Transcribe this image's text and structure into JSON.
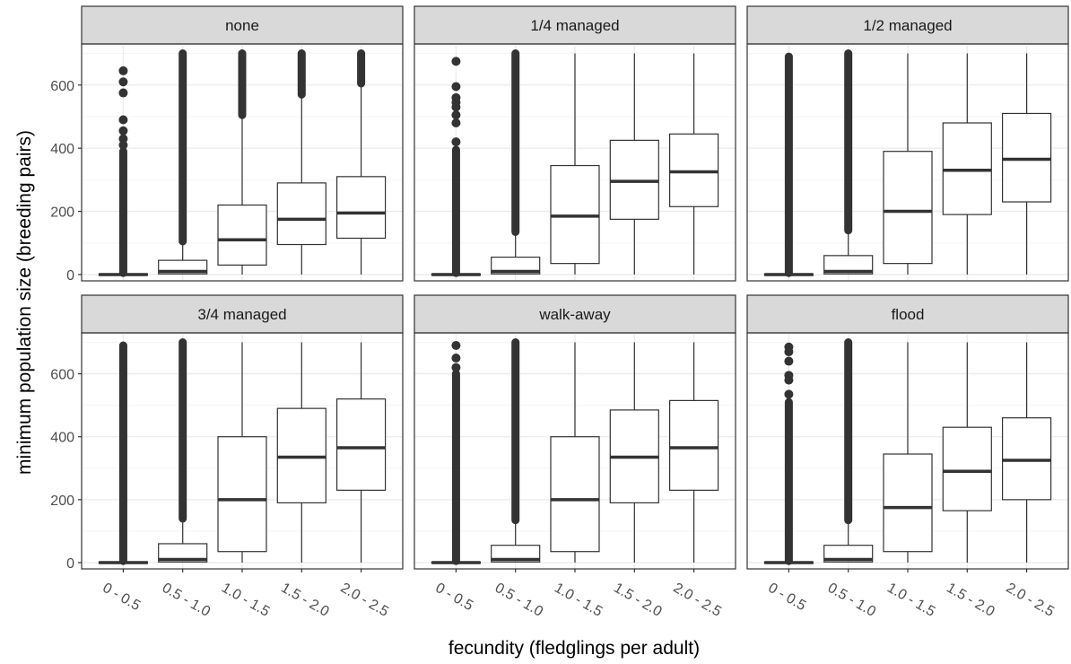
{
  "chart_data": {
    "type": "boxplot",
    "xlabel": "fecundity (fledglings per adult)",
    "ylabel": "minimum population size (breeding pairs)",
    "ylim": [
      -20,
      730
    ],
    "yticks": [
      0,
      200,
      400,
      600
    ],
    "categories": [
      "0 - 0.5",
      "0.5 - 1.0",
      "1.0 - 1.5",
      "1.5 - 2.0",
      "2.0 - 2.5"
    ],
    "grid": true,
    "panel_layout": "2 rows x 3 columns, shared axes",
    "panels": [
      {
        "title": "none",
        "boxes": [
          {
            "min": 0,
            "q1": 0,
            "median": 0,
            "q3": 2,
            "max": 3,
            "outliers": {
              "dense_from": 5,
              "dense_to": 390,
              "dots": [
                410,
                430,
                455,
                490,
                575,
                610,
                645
              ]
            }
          },
          {
            "min": 0,
            "q1": 2,
            "median": 10,
            "q3": 45,
            "max": 100,
            "outliers": {
              "dense_from": 105,
              "dense_to": 700,
              "dots": []
            }
          },
          {
            "min": 0,
            "q1": 30,
            "median": 110,
            "q3": 220,
            "max": 500,
            "outliers": {
              "dense_from": 505,
              "dense_to": 700,
              "dots": []
            }
          },
          {
            "min": 0,
            "q1": 95,
            "median": 175,
            "q3": 290,
            "max": 565,
            "outliers": {
              "dense_from": 570,
              "dense_to": 700,
              "dots": []
            }
          },
          {
            "min": 0,
            "q1": 115,
            "median": 195,
            "q3": 310,
            "max": 600,
            "outliers": {
              "dense_from": 605,
              "dense_to": 700,
              "dots": []
            }
          }
        ]
      },
      {
        "title": "1/4 managed",
        "boxes": [
          {
            "min": 0,
            "q1": 0,
            "median": 0,
            "q3": 2,
            "max": 3,
            "outliers": {
              "dense_from": 5,
              "dense_to": 395,
              "dots": [
                420,
                480,
                505,
                530,
                545,
                560,
                595,
                675
              ]
            }
          },
          {
            "min": 0,
            "q1": 2,
            "median": 10,
            "q3": 55,
            "max": 130,
            "outliers": {
              "dense_from": 135,
              "dense_to": 700,
              "dots": []
            }
          },
          {
            "min": 0,
            "q1": 35,
            "median": 185,
            "q3": 345,
            "max": 700,
            "outliers": null
          },
          {
            "min": 0,
            "q1": 175,
            "median": 295,
            "q3": 425,
            "max": 700,
            "outliers": null
          },
          {
            "min": 0,
            "q1": 215,
            "median": 325,
            "q3": 445,
            "max": 700,
            "outliers": null
          }
        ]
      },
      {
        "title": "1/2 managed",
        "boxes": [
          {
            "min": 0,
            "q1": 0,
            "median": 0,
            "q3": 2,
            "max": 3,
            "outliers": {
              "dense_from": 5,
              "dense_to": 690,
              "dots": []
            }
          },
          {
            "min": 0,
            "q1": 2,
            "median": 10,
            "q3": 60,
            "max": 135,
            "outliers": {
              "dense_from": 140,
              "dense_to": 700,
              "dots": []
            }
          },
          {
            "min": 0,
            "q1": 35,
            "median": 200,
            "q3": 390,
            "max": 700,
            "outliers": null
          },
          {
            "min": 0,
            "q1": 190,
            "median": 330,
            "q3": 480,
            "max": 700,
            "outliers": null
          },
          {
            "min": 0,
            "q1": 230,
            "median": 365,
            "q3": 510,
            "max": 700,
            "outliers": null
          }
        ]
      },
      {
        "title": "3/4 managed",
        "boxes": [
          {
            "min": 0,
            "q1": 0,
            "median": 0,
            "q3": 2,
            "max": 3,
            "outliers": {
              "dense_from": 5,
              "dense_to": 690,
              "dots": []
            }
          },
          {
            "min": 0,
            "q1": 2,
            "median": 10,
            "q3": 60,
            "max": 135,
            "outliers": {
              "dense_from": 140,
              "dense_to": 700,
              "dots": []
            }
          },
          {
            "min": 0,
            "q1": 35,
            "median": 200,
            "q3": 400,
            "max": 700,
            "outliers": null
          },
          {
            "min": 0,
            "q1": 190,
            "median": 335,
            "q3": 490,
            "max": 700,
            "outliers": null
          },
          {
            "min": 0,
            "q1": 230,
            "median": 365,
            "q3": 520,
            "max": 700,
            "outliers": null
          }
        ]
      },
      {
        "title": "walk-away",
        "boxes": [
          {
            "min": 0,
            "q1": 0,
            "median": 0,
            "q3": 2,
            "max": 3,
            "outliers": {
              "dense_from": 5,
              "dense_to": 600,
              "dots": [
                620,
                650,
                690
              ]
            }
          },
          {
            "min": 0,
            "q1": 2,
            "median": 10,
            "q3": 55,
            "max": 130,
            "outliers": {
              "dense_from": 135,
              "dense_to": 700,
              "dots": []
            }
          },
          {
            "min": 0,
            "q1": 35,
            "median": 200,
            "q3": 400,
            "max": 700,
            "outliers": null
          },
          {
            "min": 0,
            "q1": 190,
            "median": 335,
            "q3": 485,
            "max": 700,
            "outliers": null
          },
          {
            "min": 0,
            "q1": 230,
            "median": 365,
            "q3": 515,
            "max": 700,
            "outliers": null
          }
        ]
      },
      {
        "title": "flood",
        "boxes": [
          {
            "min": 0,
            "q1": 0,
            "median": 0,
            "q3": 2,
            "max": 3,
            "outliers": {
              "dense_from": 5,
              "dense_to": 510,
              "dots": [
                535,
                580,
                595,
                640,
                670,
                685
              ]
            }
          },
          {
            "min": 0,
            "q1": 2,
            "median": 10,
            "q3": 55,
            "max": 130,
            "outliers": {
              "dense_from": 135,
              "dense_to": 700,
              "dots": []
            }
          },
          {
            "min": 0,
            "q1": 35,
            "median": 175,
            "q3": 345,
            "max": 700,
            "outliers": null
          },
          {
            "min": 0,
            "q1": 165,
            "median": 290,
            "q3": 430,
            "max": 700,
            "outliers": null
          },
          {
            "min": 0,
            "q1": 200,
            "median": 325,
            "q3": 460,
            "max": 700,
            "outliers": null
          }
        ]
      }
    ]
  },
  "colors": {
    "box_stroke": "#333333",
    "median": "#333333",
    "outlier": "#333333",
    "strip_fill": "#d9d9d9",
    "strip_border": "#333333",
    "panel_border": "#333333",
    "grid_major": "#ebebeb",
    "grid_minor": "#f5f5f5"
  }
}
